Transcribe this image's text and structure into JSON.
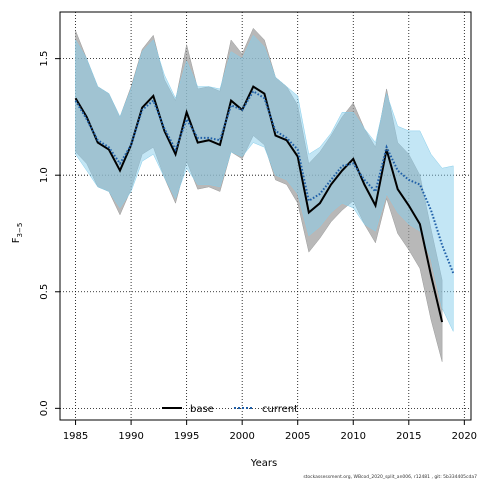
{
  "chart_data": {
    "type": "line",
    "xlabel": "Years",
    "ylabel": "F̅3–5",
    "ylabel_main": "F",
    "ylabel_sub": "3−5",
    "xlim": [
      1983.6,
      2020.6
    ],
    "ylim": [
      -0.05,
      1.7
    ],
    "x_ticks": [
      1985,
      1990,
      1995,
      2000,
      2005,
      2010,
      2015,
      2020
    ],
    "y_ticks": [
      0.0,
      0.5,
      1.0,
      1.5
    ],
    "y_tick_labels": [
      "0.0",
      "0.5",
      "1.0",
      "1.5"
    ],
    "grid": true,
    "legend_position": "bottom-left",
    "series": [
      {
        "name": "base",
        "color": "#000000",
        "band_color": "#9a9a9a",
        "line_style": "solid",
        "x": [
          1985,
          1986,
          1987,
          1988,
          1989,
          1990,
          1991,
          1992,
          1993,
          1994,
          1995,
          1996,
          1997,
          1998,
          1999,
          2000,
          2001,
          2002,
          2003,
          2004,
          2005,
          2006,
          2007,
          2008,
          2009,
          2010,
          2011,
          2012,
          2013,
          2014,
          2015,
          2016,
          2017,
          2018
        ],
        "values": [
          1.33,
          1.25,
          1.14,
          1.11,
          1.02,
          1.13,
          1.29,
          1.34,
          1.19,
          1.09,
          1.27,
          1.14,
          1.15,
          1.13,
          1.32,
          1.28,
          1.38,
          1.35,
          1.17,
          1.15,
          1.08,
          0.84,
          0.88,
          0.96,
          1.02,
          1.07,
          0.96,
          0.87,
          1.11,
          0.94,
          0.87,
          0.79,
          0.57,
          0.37
        ],
        "upper": [
          1.62,
          1.5,
          1.38,
          1.35,
          1.25,
          1.38,
          1.54,
          1.6,
          1.41,
          1.32,
          1.56,
          1.37,
          1.38,
          1.36,
          1.58,
          1.52,
          1.63,
          1.58,
          1.42,
          1.38,
          1.3,
          1.05,
          1.1,
          1.17,
          1.25,
          1.31,
          1.2,
          1.12,
          1.37,
          1.14,
          1.09,
          1.0,
          0.77,
          0.55
        ],
        "lower": [
          1.1,
          1.05,
          0.95,
          0.93,
          0.83,
          0.94,
          1.09,
          1.12,
          0.99,
          0.88,
          1.06,
          0.94,
          0.95,
          0.93,
          1.1,
          1.07,
          1.17,
          1.13,
          0.98,
          0.96,
          0.88,
          0.67,
          0.73,
          0.8,
          0.85,
          0.89,
          0.79,
          0.71,
          0.9,
          0.75,
          0.68,
          0.6,
          0.38,
          0.2
        ]
      },
      {
        "name": "current",
        "color": "#1f5fa8",
        "band_color": "#87ceeb",
        "line_style": "dotted",
        "x": [
          1985,
          1986,
          1987,
          1988,
          1989,
          1990,
          1991,
          1992,
          1993,
          1994,
          1995,
          1996,
          1997,
          1998,
          1999,
          2000,
          2001,
          2002,
          2003,
          2004,
          2005,
          2006,
          2007,
          2008,
          2009,
          2010,
          2011,
          2012,
          2013,
          2014,
          2015,
          2016,
          2017,
          2018,
          2019
        ],
        "values": [
          1.32,
          1.24,
          1.15,
          1.12,
          1.05,
          1.13,
          1.28,
          1.32,
          1.2,
          1.11,
          1.24,
          1.16,
          1.16,
          1.15,
          1.3,
          1.28,
          1.36,
          1.33,
          1.19,
          1.16,
          1.11,
          0.89,
          0.92,
          0.98,
          1.04,
          1.05,
          0.98,
          0.93,
          1.12,
          1.02,
          0.98,
          0.96,
          0.85,
          0.7,
          0.58
        ],
        "upper": [
          1.58,
          1.5,
          1.38,
          1.35,
          1.25,
          1.37,
          1.53,
          1.58,
          1.43,
          1.33,
          1.49,
          1.38,
          1.38,
          1.37,
          1.53,
          1.5,
          1.6,
          1.55,
          1.42,
          1.38,
          1.34,
          1.09,
          1.12,
          1.18,
          1.27,
          1.27,
          1.2,
          1.14,
          1.35,
          1.21,
          1.19,
          1.19,
          1.09,
          1.03,
          1.04
        ],
        "lower": [
          1.09,
          1.02,
          0.95,
          0.93,
          0.86,
          0.93,
          1.06,
          1.09,
          0.99,
          0.9,
          1.03,
          0.96,
          0.96,
          0.95,
          1.1,
          1.08,
          1.14,
          1.12,
          1.0,
          0.98,
          0.92,
          0.74,
          0.78,
          0.84,
          0.88,
          0.86,
          0.79,
          0.76,
          0.92,
          0.84,
          0.79,
          0.76,
          0.64,
          0.43,
          0.33
        ]
      }
    ],
    "footer": "stockassessment.org,  WBcod_2020_split_an006,  r12481 ,  git: 5b334405cda7"
  }
}
